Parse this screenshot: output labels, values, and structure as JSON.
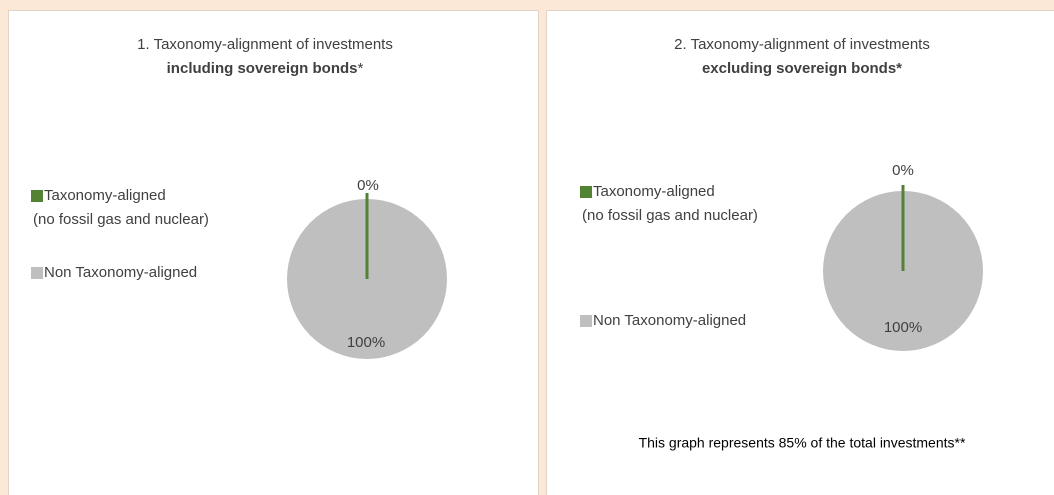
{
  "chart_data": [
    {
      "type": "pie",
      "title": "1. Taxonomy-alignment of investments",
      "subtitle": "including sovereign bonds",
      "subtitle_suffix": "*",
      "categories": [
        [
          "Taxonomy-aligned",
          "(no fossil gas and nuclear)"
        ],
        [
          "Non Taxonomy-aligned"
        ]
      ],
      "values": [
        0,
        100
      ],
      "value_labels": [
        "0%",
        "100%"
      ],
      "colors": [
        "#548235",
        "#bfbfbf"
      ]
    },
    {
      "type": "pie",
      "title": "2. Taxonomy-alignment of investments",
      "subtitle": "excluding sovereign bonds*",
      "categories": [
        [
          "Taxonomy-aligned",
          "(no fossil gas and nuclear)"
        ],
        [
          "Non Taxonomy-aligned"
        ]
      ],
      "values": [
        0,
        100
      ],
      "value_labels": [
        "0%",
        "100%"
      ],
      "colors": [
        "#548235",
        "#bfbfbf"
      ],
      "note": "This graph represents 85% of the total investments**"
    }
  ]
}
